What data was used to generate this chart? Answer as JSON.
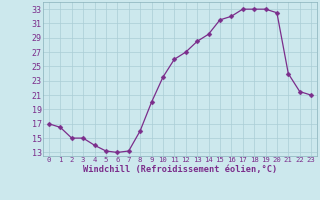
{
  "x": [
    0,
    1,
    2,
    3,
    4,
    5,
    6,
    7,
    8,
    9,
    10,
    11,
    12,
    13,
    14,
    15,
    16,
    17,
    18,
    19,
    20,
    21,
    22,
    23
  ],
  "y": [
    17,
    16.5,
    15,
    15,
    14,
    13.2,
    13,
    13.2,
    16,
    20,
    23.5,
    26,
    27,
    28.5,
    29.5,
    31.5,
    32,
    33,
    33,
    33,
    32.5,
    24,
    21.5,
    21
  ],
  "line_color": "#7B2D8B",
  "marker": "D",
  "marker_size": 2.5,
  "bg_color": "#cce8ed",
  "grid_color": "#aacdd5",
  "xlabel": "Windchill (Refroidissement éolien,°C)",
  "xlabel_color": "#7B2D8B",
  "tick_color": "#7B2D8B",
  "ylim": [
    12.5,
    34
  ],
  "xlim": [
    -0.5,
    23.5
  ],
  "yticks": [
    13,
    15,
    17,
    19,
    21,
    23,
    25,
    27,
    29,
    31,
    33
  ],
  "xticks": [
    0,
    1,
    2,
    3,
    4,
    5,
    6,
    7,
    8,
    9,
    10,
    11,
    12,
    13,
    14,
    15,
    16,
    17,
    18,
    19,
    20,
    21,
    22,
    23
  ]
}
